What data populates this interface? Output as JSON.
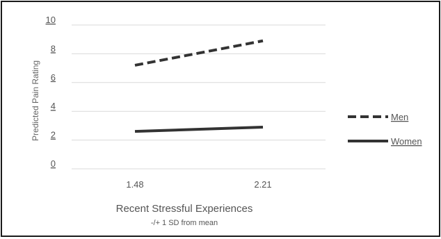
{
  "chart_data": {
    "type": "line",
    "x": [
      "1.48",
      "2.21"
    ],
    "series": [
      {
        "name": "Men",
        "values": [
          7.2,
          8.9
        ],
        "style": "dashed",
        "color": "#333333"
      },
      {
        "name": "Women",
        "values": [
          2.6,
          2.9
        ],
        "style": "solid",
        "color": "#333333"
      }
    ],
    "ylim": [
      0,
      10
    ],
    "yticks": [
      "0",
      "2",
      "4",
      "6",
      "8",
      "10"
    ],
    "ylabel": "Predicted Pain Rating",
    "xlabel": "Recent Stressful Experiences",
    "xsublabel": "-/+ 1 SD from mean",
    "grid": true,
    "legend_position": "right"
  }
}
